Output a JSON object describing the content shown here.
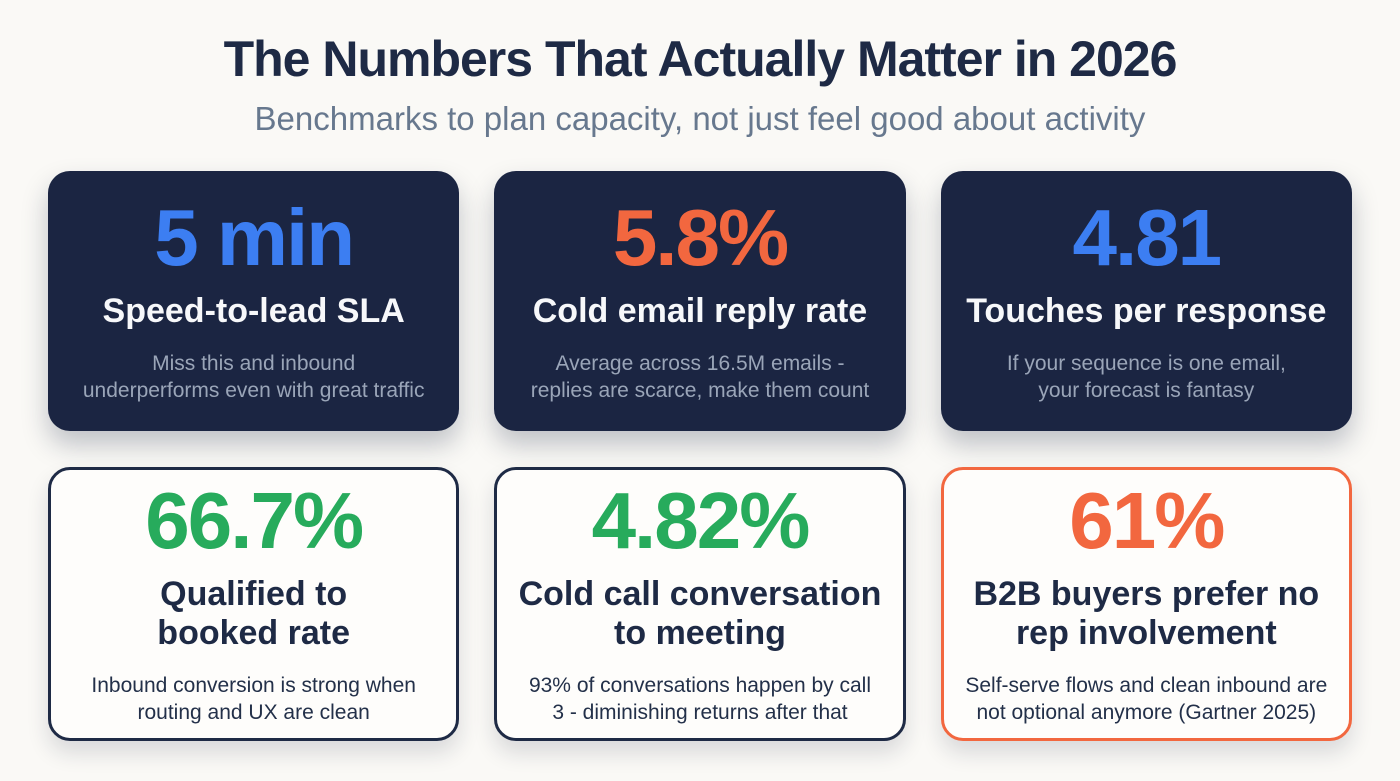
{
  "header": {
    "title": "The Numbers That Actually Matter in 2026",
    "subtitle": "Benchmarks to plan capacity, not just feel good about activity"
  },
  "colors": {
    "background": "#FAF9F6",
    "title_navy": "#1E2A45",
    "subtitle_gray": "#67788E",
    "dark_card_background": "#1B2542",
    "light_card_background": "#FEFDFB",
    "accent_blue": "#3C7EF2",
    "accent_orange": "#F2673F",
    "accent_green": "#27AB5C",
    "muted_text_on_dark": "#9AA5B8",
    "dark_text_on_light": "#233049"
  },
  "cards": [
    {
      "id": "speed-to-lead-sla",
      "variant": "dark",
      "value": "5 min",
      "value_color": "#3C7EF2",
      "label": "Speed-to-lead SLA",
      "description": "Miss this and inbound\nunderperforms even with great traffic"
    },
    {
      "id": "cold-email-reply-rate",
      "variant": "dark",
      "value": "5.8%",
      "value_color": "#F2673F",
      "label": "Cold email reply rate",
      "description": "Average across 16.5M emails -\nreplies are scarce, make them count"
    },
    {
      "id": "touches-per-response",
      "variant": "dark",
      "value": "4.81",
      "value_color": "#3C7EF2",
      "label": "Touches per response",
      "description": "If your sequence is one email,\nyour forecast is fantasy"
    },
    {
      "id": "qualified-to-booked-rate",
      "variant": "light",
      "value": "66.7%",
      "value_color": "#27AB5C",
      "border_color": "#1E2A45",
      "label": "Qualified to\nbooked rate",
      "description": "Inbound conversion is strong when\nrouting and UX are clean"
    },
    {
      "id": "cold-call-conversation-to-meeting",
      "variant": "light",
      "value": "4.82%",
      "value_color": "#27AB5C",
      "border_color": "#1E2A45",
      "label": "Cold call conversation\nto meeting",
      "description": "93% of conversations happen by call\n3 - diminishing returns after that"
    },
    {
      "id": "b2b-buyers-prefer-no-rep",
      "variant": "light",
      "value": "61%",
      "value_color": "#F2673F",
      "border_color": "#F2673F",
      "label": "B2B buyers prefer no\nrep involvement",
      "description": "Self-serve flows and clean inbound are\nnot optional anymore (Gartner 2025)"
    }
  ]
}
